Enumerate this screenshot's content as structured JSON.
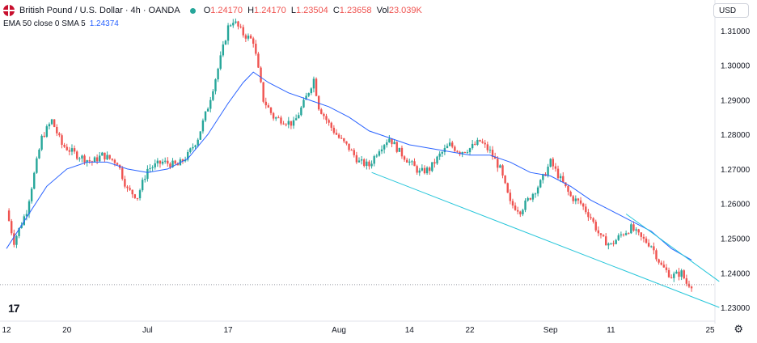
{
  "header": {
    "symbol": "British Pound / U.S. Dollar · 4h · OANDA",
    "o_label": "O",
    "o_value": "1.24170",
    "h_label": "H",
    "h_value": "1.24170",
    "l_label": "L",
    "l_value": "1.23504",
    "c_label": "C",
    "c_value": "1.23658",
    "vol_label": "Vol",
    "vol_value": "23.039K"
  },
  "indicator": {
    "label": "EMA 50 close 0 SMA 5",
    "value": "1.24374"
  },
  "currency_button": "USD",
  "logo_text": "17",
  "colors": {
    "up": "#26a69a",
    "down": "#ef5350",
    "ema": "#2962ff",
    "trend": "#26c6da",
    "grid": "#f0f3fa"
  },
  "chart_data": {
    "type": "candlestick",
    "title": "British Pound / U.S. Dollar · 4h · OANDA",
    "ylim": [
      1.2265,
      1.3165
    ],
    "y_ticks": [
      1.23,
      1.24,
      1.25,
      1.26,
      1.27,
      1.28,
      1.29,
      1.3,
      1.31
    ],
    "y_tick_labels": [
      "1.23000",
      "1.24000",
      "1.25000",
      "1.26000",
      "1.27000",
      "1.28000",
      "1.29000",
      "1.30000",
      "1.31000"
    ],
    "x_tick_labels": [
      "12",
      "20",
      "Jul",
      "17",
      "Aug",
      "14",
      "22",
      "Sep",
      "11",
      "25"
    ],
    "x_tick_index": [
      0,
      24,
      56,
      88,
      132,
      160,
      184,
      216,
      240,
      280
    ],
    "close_path": [
      [
        0,
        1.258
      ],
      [
        3,
        1.249
      ],
      [
        8,
        1.258
      ],
      [
        14,
        1.279
      ],
      [
        18,
        1.284
      ],
      [
        22,
        1.277
      ],
      [
        28,
        1.274
      ],
      [
        34,
        1.272
      ],
      [
        38,
        1.274
      ],
      [
        44,
        1.272
      ],
      [
        48,
        1.264
      ],
      [
        52,
        1.262
      ],
      [
        56,
        1.27
      ],
      [
        62,
        1.272
      ],
      [
        68,
        1.271
      ],
      [
        72,
        1.274
      ],
      [
        76,
        1.279
      ],
      [
        80,
        1.288
      ],
      [
        84,
        1.299
      ],
      [
        88,
        1.311
      ],
      [
        90,
        1.313
      ],
      [
        94,
        1.309
      ],
      [
        98,
        1.307
      ],
      [
        102,
        1.29
      ],
      [
        106,
        1.285
      ],
      [
        110,
        1.284
      ],
      [
        114,
        1.283
      ],
      [
        118,
        1.289
      ],
      [
        122,
        1.296
      ],
      [
        124,
        1.288
      ],
      [
        128,
        1.283
      ],
      [
        132,
        1.279
      ],
      [
        136,
        1.276
      ],
      [
        140,
        1.272
      ],
      [
        144,
        1.271
      ],
      [
        148,
        1.276
      ],
      [
        152,
        1.279
      ],
      [
        156,
        1.275
      ],
      [
        160,
        1.272
      ],
      [
        164,
        1.269
      ],
      [
        168,
        1.27
      ],
      [
        172,
        1.274
      ],
      [
        176,
        1.277
      ],
      [
        180,
        1.275
      ],
      [
        184,
        1.276
      ],
      [
        188,
        1.278
      ],
      [
        192,
        1.275
      ],
      [
        196,
        1.27
      ],
      [
        200,
        1.26
      ],
      [
        204,
        1.258
      ],
      [
        208,
        1.262
      ],
      [
        212,
        1.266
      ],
      [
        216,
        1.272
      ],
      [
        220,
        1.267
      ],
      [
        224,
        1.262
      ],
      [
        228,
        1.26
      ],
      [
        232,
        1.256
      ],
      [
        236,
        1.25
      ],
      [
        240,
        1.248
      ],
      [
        244,
        1.251
      ],
      [
        248,
        1.253
      ],
      [
        252,
        1.25
      ],
      [
        256,
        1.248
      ],
      [
        260,
        1.242
      ],
      [
        264,
        1.239
      ],
      [
        268,
        1.24
      ],
      [
        270,
        1.237
      ],
      [
        272,
        1.2366
      ]
    ],
    "ema_path": [
      [
        0,
        1.247
      ],
      [
        8,
        1.256
      ],
      [
        16,
        1.265
      ],
      [
        24,
        1.27
      ],
      [
        32,
        1.272
      ],
      [
        40,
        1.272
      ],
      [
        48,
        1.27
      ],
      [
        56,
        1.269
      ],
      [
        64,
        1.27
      ],
      [
        72,
        1.273
      ],
      [
        80,
        1.28
      ],
      [
        88,
        1.289
      ],
      [
        94,
        1.295
      ],
      [
        98,
        1.298
      ],
      [
        104,
        1.295
      ],
      [
        112,
        1.292
      ],
      [
        120,
        1.29
      ],
      [
        128,
        1.288
      ],
      [
        136,
        1.285
      ],
      [
        144,
        1.281
      ],
      [
        152,
        1.279
      ],
      [
        160,
        1.277
      ],
      [
        168,
        1.276
      ],
      [
        176,
        1.275
      ],
      [
        184,
        1.274
      ],
      [
        192,
        1.274
      ],
      [
        200,
        1.272
      ],
      [
        208,
        1.269
      ],
      [
        216,
        1.268
      ],
      [
        224,
        1.265
      ],
      [
        232,
        1.261
      ],
      [
        240,
        1.258
      ],
      [
        248,
        1.255
      ],
      [
        256,
        1.252
      ],
      [
        264,
        1.247
      ],
      [
        272,
        1.2437
      ]
    ],
    "trendlines": [
      {
        "from": [
          145,
          1.269
        ],
        "to": [
          283,
          1.23
        ]
      },
      {
        "from": [
          246,
          1.257
        ],
        "to": [
          283,
          1.2375
        ]
      }
    ],
    "last_price": 1.23658,
    "last_price_line": "dotted"
  }
}
